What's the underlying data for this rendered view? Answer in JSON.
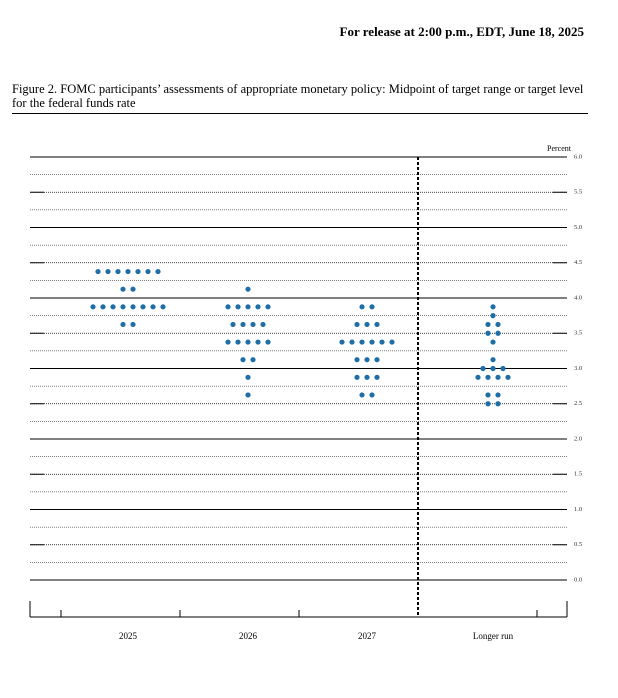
{
  "header": {
    "release": "For release at 2:00 p.m., EDT, June 18, 2025"
  },
  "chart_data": {
    "type": "dot",
    "title": "Figure 2.  FOMC participants’ assessments of appropriate monetary policy: Midpoint of target range or target level for the federal funds rate",
    "y_label": "Percent",
    "categories": [
      "2025",
      "2026",
      "2027",
      "Longer run"
    ],
    "color": "#1f6fa6",
    "values": [
      [
        4.375,
        4.375,
        4.375,
        4.375,
        4.375,
        4.375,
        4.375,
        4.125,
        4.125,
        3.875,
        3.875,
        3.875,
        3.875,
        3.875,
        3.875,
        3.875,
        3.875,
        3.625,
        3.625
      ],
      [
        4.125,
        3.875,
        3.875,
        3.875,
        3.875,
        3.875,
        3.625,
        3.625,
        3.625,
        3.625,
        3.375,
        3.375,
        3.375,
        3.375,
        3.375,
        3.125,
        3.125,
        2.875,
        2.625
      ],
      [
        3.875,
        3.875,
        3.625,
        3.625,
        3.625,
        3.375,
        3.375,
        3.375,
        3.375,
        3.375,
        3.375,
        3.125,
        3.125,
        3.125,
        2.875,
        2.875,
        2.875,
        2.625,
        2.625
      ],
      [
        3.875,
        3.75,
        3.625,
        3.625,
        3.5,
        3.5,
        3.375,
        3.125,
        3,
        3,
        3,
        2.875,
        2.875,
        2.875,
        2.875,
        2.625,
        2.625,
        2.5,
        2.5
      ]
    ],
    "ylim": [
      0,
      6
    ],
    "yticks": [
      {
        "value": 0,
        "label": "0.0"
      },
      {
        "value": 0.5,
        "label": "0.5"
      },
      {
        "value": 1,
        "label": "1.0"
      },
      {
        "value": 1.5,
        "label": "1.5"
      },
      {
        "value": 2,
        "label": "2.0"
      },
      {
        "value": 2.5,
        "label": "2.5"
      },
      {
        "value": 3,
        "label": "3.0"
      },
      {
        "value": 3.5,
        "label": "3.5"
      },
      {
        "value": 4,
        "label": "4.0"
      },
      {
        "value": 4.5,
        "label": "4.5"
      },
      {
        "value": 5,
        "label": "5.0"
      },
      {
        "value": 5.5,
        "label": "5.5"
      },
      {
        "value": 6,
        "label": "6.0"
      }
    ],
    "grid": true
  }
}
